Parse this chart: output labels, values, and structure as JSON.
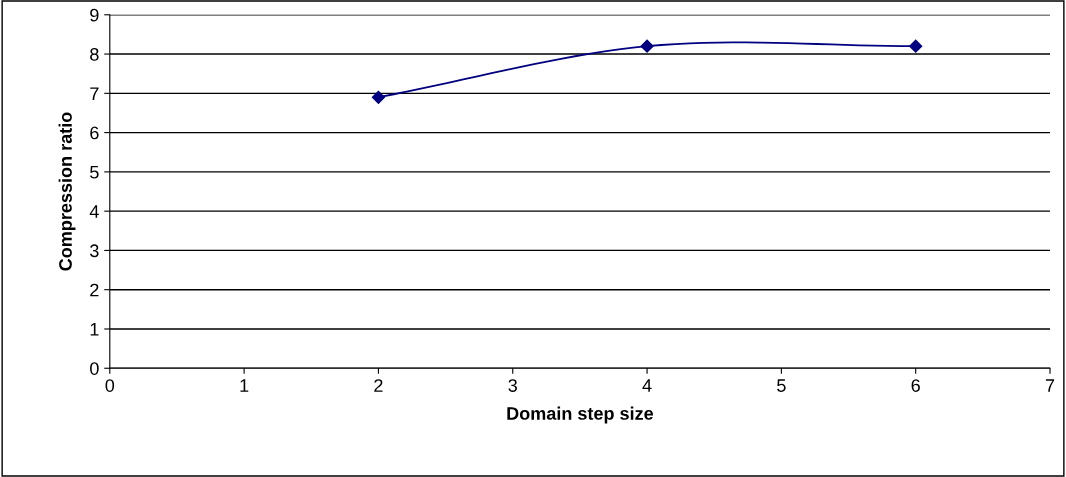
{
  "chart_data": {
    "type": "line",
    "xlabel": "Domain step size",
    "ylabel": "Compression ratio",
    "x": [
      2,
      4,
      6
    ],
    "series": [
      {
        "color": "#000080",
        "values": [
          6.9,
          8.2,
          8.2
        ]
      }
    ],
    "xlim": [
      0,
      7
    ],
    "xticks": [
      0,
      1,
      2,
      3,
      4,
      5,
      6,
      7
    ],
    "ylim": [
      0,
      9
    ],
    "yticks": [
      0,
      1,
      2,
      3,
      4,
      5,
      6,
      7,
      8,
      9
    ],
    "grid": "y",
    "marker": "diamond",
    "line_style": "solid",
    "legend": false
  }
}
